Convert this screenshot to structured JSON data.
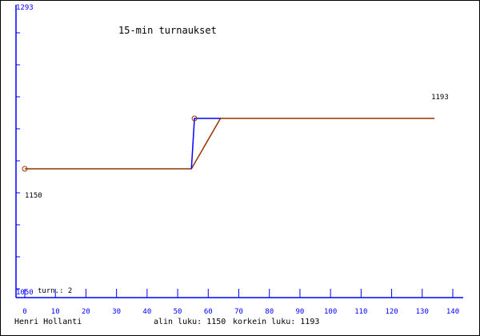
{
  "chart_data": {
    "type": "line",
    "title": "15-min turnaukset",
    "xlim": [
      0,
      140
    ],
    "ylim": [
      1050,
      1293
    ],
    "x_ticks": [
      "0",
      "10",
      "20",
      "30",
      "40",
      "50",
      "60",
      "70",
      "80",
      "90",
      "100",
      "110",
      "120",
      "130",
      "140"
    ],
    "y_top_label": "1293",
    "y_bottom_label": "1050",
    "series": [
      {
        "color": "#993300",
        "points": [
          [
            0,
            1150
          ],
          [
            54.5,
            1150
          ],
          [
            64,
            1193
          ],
          [
            134,
            1193
          ]
        ]
      },
      {
        "color": "#0000ff",
        "points": [
          [
            54.5,
            1150
          ],
          [
            55.5,
            1193
          ],
          [
            64,
            1193
          ]
        ]
      }
    ],
    "markers": [
      [
        0,
        1150
      ],
      [
        55.5,
        1193
      ]
    ],
    "annotations": [
      {
        "text": "1150",
        "x": 0,
        "y": 1150,
        "pos": "below"
      },
      {
        "text": "1193",
        "x": 134,
        "y": 1193,
        "pos": "above"
      }
    ],
    "axis_color": "#0000ff"
  },
  "turns_label": "turn.: 2",
  "footer": {
    "author": "Henri Hollanti",
    "low": "alin luku: 1150",
    "high": "korkein luku: 1193"
  }
}
